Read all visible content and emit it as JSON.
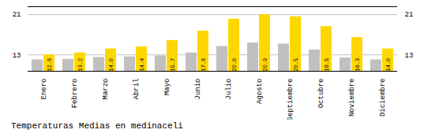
{
  "chart_data": {
    "type": "bar",
    "title": "Temperaturas Medias en medinaceli",
    "categories": [
      "Enero",
      "Febrero",
      "Marzo",
      "Abril",
      "Mayo",
      "Junio",
      "Julio",
      "Agosto",
      "Septiembre",
      "Octubre",
      "Noviembre",
      "Diciembre"
    ],
    "series": [
      {
        "color": "#C0C0C0",
        "values": [
          11.8,
          11.9,
          12.3,
          12.4,
          12.6,
          13.2,
          14.5,
          15.2,
          15.0,
          13.8,
          12.2,
          11.8
        ]
      },
      {
        "color": "#FFD700",
        "values": [
          12.8,
          13.2,
          14.0,
          14.4,
          15.7,
          17.6,
          20.0,
          20.9,
          20.5,
          18.5,
          16.3,
          14.0
        ],
        "value_labels": [
          "12.8",
          "13.2",
          "14.0",
          "14.4",
          "15.7",
          "17.6",
          "20.0",
          "20.9",
          "20.5",
          "18.5",
          "16.3",
          "14.0"
        ],
        "data_labels": true
      }
    ],
    "ylim": [
      9.5,
      22.5
    ],
    "yticks": [
      12.8,
      20.9
    ],
    "grid": true
  }
}
